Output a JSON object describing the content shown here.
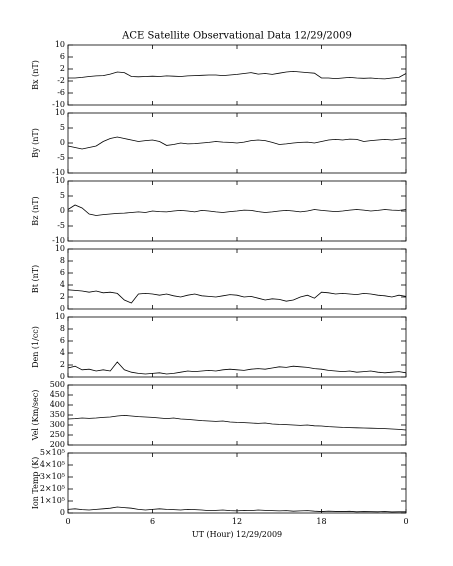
{
  "chart_data": [
    {
      "type": "line",
      "title": "ACE Satellite Observational Data   12/29/2009",
      "y_label": "Bx (nT)",
      "xlim": [
        0,
        24
      ],
      "ylim": [
        -10,
        10
      ],
      "yticks": [
        -10,
        -6,
        -2,
        2,
        6,
        10
      ],
      "x": [
        0,
        0.5,
        1,
        1.5,
        2,
        2.5,
        3,
        3.5,
        4,
        4.5,
        5,
        5.5,
        6,
        6.5,
        7,
        7.5,
        8,
        8.5,
        9,
        9.5,
        10,
        10.5,
        11,
        11.5,
        12,
        12.5,
        13,
        13.5,
        14,
        14.5,
        15,
        15.5,
        16,
        16.5,
        17,
        17.5,
        18,
        18.5,
        19,
        19.5,
        20,
        20.5,
        21,
        21.5,
        22,
        22.5,
        23,
        23.5,
        24
      ],
      "values": [
        -1,
        -1,
        -0.8,
        -0.5,
        -0.3,
        -0.2,
        0.3,
        1,
        0.8,
        -0.5,
        -0.6,
        -0.5,
        -0.4,
        -0.5,
        -0.3,
        -0.4,
        -0.5,
        -0.3,
        -0.2,
        -0.1,
        0,
        0,
        -0.2,
        0,
        0.2,
        0.5,
        0.8,
        0.3,
        0.5,
        0.2,
        0.6,
        1,
        1.2,
        1,
        0.8,
        0.6,
        -1,
        -1,
        -1.2,
        -1,
        -0.8,
        -1,
        -1.1,
        -1,
        -1.2,
        -1.3,
        -1,
        -0.8,
        0.5
      ],
      "color": "#000000"
    },
    {
      "type": "line",
      "y_label": "By (nT)",
      "xlim": [
        0,
        24
      ],
      "ylim": [
        -10,
        10
      ],
      "yticks": [
        -10,
        -5,
        0,
        5,
        10
      ],
      "x": [
        0,
        0.5,
        1,
        1.5,
        2,
        2.5,
        3,
        3.5,
        4,
        4.5,
        5,
        5.5,
        6,
        6.5,
        7,
        7.5,
        8,
        8.5,
        9,
        9.5,
        10,
        10.5,
        11,
        11.5,
        12,
        12.5,
        13,
        13.5,
        14,
        14.5,
        15,
        15.5,
        16,
        16.5,
        17,
        17.5,
        18,
        18.5,
        19,
        19.5,
        20,
        20.5,
        21,
        21.5,
        22,
        22.5,
        23,
        23.5,
        24
      ],
      "values": [
        -1,
        -1.5,
        -2,
        -1.5,
        -1,
        0.5,
        1.5,
        2,
        1.5,
        1,
        0.5,
        0.8,
        1,
        0.5,
        -0.8,
        -0.5,
        0,
        -0.3,
        -0.2,
        0,
        0.2,
        0.5,
        0.3,
        0.2,
        0,
        0.3,
        0.8,
        1,
        0.8,
        0.2,
        -0.5,
        -0.3,
        0,
        0.2,
        0.3,
        0,
        0.5,
        1,
        1.2,
        1,
        1.3,
        1.2,
        0.5,
        0.8,
        1,
        1.2,
        1,
        1.3,
        1.5
      ],
      "color": "#000000"
    },
    {
      "type": "line",
      "y_label": "Bz (nT)",
      "xlim": [
        0,
        24
      ],
      "ylim": [
        -10,
        10
      ],
      "yticks": [
        -10,
        -5,
        0,
        5,
        10
      ],
      "x": [
        0,
        0.5,
        1,
        1.5,
        2,
        2.5,
        3,
        3.5,
        4,
        4.5,
        5,
        5.5,
        6,
        6.5,
        7,
        7.5,
        8,
        8.5,
        9,
        9.5,
        10,
        10.5,
        11,
        11.5,
        12,
        12.5,
        13,
        13.5,
        14,
        14.5,
        15,
        15.5,
        16,
        16.5,
        17,
        17.5,
        18,
        18.5,
        19,
        19.5,
        20,
        20.5,
        21,
        21.5,
        22,
        22.5,
        23,
        23.5,
        24
      ],
      "values": [
        0.5,
        2,
        1,
        -1,
        -1.5,
        -1.2,
        -1,
        -0.8,
        -0.7,
        -0.5,
        -0.3,
        -0.5,
        0,
        -0.2,
        -0.3,
        0,
        0.2,
        0,
        -0.3,
        0.2,
        0,
        -0.3,
        -0.5,
        -0.2,
        0,
        0.3,
        0.2,
        -0.2,
        -0.5,
        -0.3,
        0,
        0.2,
        0,
        -0.3,
        0,
        0.5,
        0.2,
        0,
        -0.2,
        0,
        0.3,
        0.5,
        0.3,
        0,
        0.2,
        0.5,
        0.3,
        0.2,
        0.5
      ],
      "color": "#000000"
    },
    {
      "type": "line",
      "y_label": "Bt (nT)",
      "xlim": [
        0,
        24
      ],
      "ylim": [
        0,
        10
      ],
      "yticks": [
        0,
        2,
        4,
        6,
        8,
        10
      ],
      "x": [
        0,
        0.5,
        1,
        1.5,
        2,
        2.5,
        3,
        3.5,
        4,
        4.5,
        5,
        5.5,
        6,
        6.5,
        7,
        7.5,
        8,
        8.5,
        9,
        9.5,
        10,
        10.5,
        11,
        11.5,
        12,
        12.5,
        13,
        13.5,
        14,
        14.5,
        15,
        15.5,
        16,
        16.5,
        17,
        17.5,
        18,
        18.5,
        19,
        19.5,
        20,
        20.5,
        21,
        21.5,
        22,
        22.5,
        23,
        23.5,
        24
      ],
      "values": [
        3.2,
        3.1,
        3,
        2.8,
        3,
        2.7,
        2.8,
        2.6,
        1.5,
        1,
        2.5,
        2.6,
        2.5,
        2.3,
        2.5,
        2.2,
        2,
        2.3,
        2.5,
        2.2,
        2.1,
        2,
        2.2,
        2.4,
        2.3,
        2,
        2.1,
        1.8,
        1.5,
        1.7,
        1.6,
        1.3,
        1.5,
        2,
        2.3,
        1.8,
        2.8,
        2.7,
        2.5,
        2.6,
        2.5,
        2.4,
        2.6,
        2.5,
        2.3,
        2.2,
        2,
        2.3,
        2.1
      ],
      "color": "#000000"
    },
    {
      "type": "line",
      "y_label": "Den (1/cc)",
      "xlim": [
        0,
        24
      ],
      "ylim": [
        0,
        10
      ],
      "yticks": [
        0,
        2,
        4,
        6,
        8,
        10
      ],
      "x": [
        0,
        0.5,
        1,
        1.5,
        2,
        2.5,
        3,
        3.5,
        4,
        4.5,
        5,
        5.5,
        6,
        6.5,
        7,
        7.5,
        8,
        8.5,
        9,
        9.5,
        10,
        10.5,
        11,
        11.5,
        12,
        12.5,
        13,
        13.5,
        14,
        14.5,
        15,
        15.5,
        16,
        16.5,
        17,
        17.5,
        18,
        18.5,
        19,
        19.5,
        20,
        20.5,
        21,
        21.5,
        22,
        22.5,
        23,
        23.5,
        24
      ],
      "values": [
        1.5,
        1.8,
        1.2,
        1.3,
        1,
        1.2,
        1,
        2.5,
        1.2,
        0.8,
        0.6,
        0.5,
        0.6,
        0.7,
        0.5,
        0.6,
        0.8,
        1,
        0.9,
        1,
        1.1,
        1,
        1.2,
        1.3,
        1.2,
        1.1,
        1.3,
        1.4,
        1.3,
        1.5,
        1.7,
        1.6,
        1.8,
        1.7,
        1.6,
        1.4,
        1.3,
        1.1,
        1,
        0.9,
        1,
        0.8,
        0.9,
        1,
        0.8,
        0.7,
        0.8,
        0.9,
        0.7
      ],
      "color": "#000000"
    },
    {
      "type": "line",
      "y_label": "Vel (Km/sec)",
      "xlim": [
        0,
        24
      ],
      "ylim": [
        200,
        500
      ],
      "yticks": [
        200,
        250,
        300,
        350,
        400,
        450,
        500
      ],
      "x": [
        0,
        0.5,
        1,
        1.5,
        2,
        2.5,
        3,
        3.5,
        4,
        4.5,
        5,
        5.5,
        6,
        6.5,
        7,
        7.5,
        8,
        8.5,
        9,
        9.5,
        10,
        10.5,
        11,
        11.5,
        12,
        12.5,
        13,
        13.5,
        14,
        14.5,
        15,
        15.5,
        16,
        16.5,
        17,
        17.5,
        18,
        18.5,
        19,
        19.5,
        20,
        20.5,
        21,
        21.5,
        22,
        22.5,
        23,
        23.5,
        24
      ],
      "values": [
        330,
        332,
        335,
        333,
        335,
        338,
        340,
        345,
        348,
        345,
        342,
        340,
        338,
        335,
        332,
        335,
        330,
        328,
        325,
        322,
        320,
        318,
        320,
        315,
        313,
        312,
        310,
        308,
        310,
        305,
        303,
        302,
        300,
        298,
        300,
        296,
        295,
        292,
        290,
        288,
        287,
        286,
        285,
        284,
        283,
        282,
        280,
        278,
        275
      ],
      "color": "#000000"
    },
    {
      "type": "line",
      "y_label": "Ion Temp (K)",
      "x_label": "UT (Hour)  12/29/2009",
      "xlim": [
        0,
        24
      ],
      "xticks": [
        0,
        6,
        12,
        18,
        {
          "value": 24,
          "label": "0"
        }
      ],
      "ylim": [
        0,
        500000
      ],
      "yticks": [
        0,
        {
          "value": 100000,
          "label": "1×10⁵"
        },
        {
          "value": 200000,
          "label": "2×10⁵"
        },
        {
          "value": 300000,
          "label": "3×10⁵"
        },
        {
          "value": 400000,
          "label": "4×10⁵"
        },
        {
          "value": 500000,
          "label": "5×10⁵"
        }
      ],
      "x": [
        0,
        0.5,
        1,
        1.5,
        2,
        2.5,
        3,
        3.5,
        4,
        4.5,
        5,
        5.5,
        6,
        6.5,
        7,
        7.5,
        8,
        8.5,
        9,
        9.5,
        10,
        10.5,
        11,
        11.5,
        12,
        12.5,
        13,
        13.5,
        14,
        14.5,
        15,
        15.5,
        16,
        16.5,
        17,
        17.5,
        18,
        18.5,
        19,
        19.5,
        20,
        20.5,
        21,
        21.5,
        22,
        22.5,
        23,
        23.5,
        24
      ],
      "values": [
        30000,
        35000,
        28000,
        25000,
        30000,
        35000,
        40000,
        50000,
        45000,
        40000,
        30000,
        25000,
        30000,
        35000,
        30000,
        28000,
        25000,
        30000,
        28000,
        25000,
        20000,
        22000,
        25000,
        20000,
        18000,
        22000,
        20000,
        25000,
        22000,
        20000,
        18000,
        20000,
        15000,
        18000,
        20000,
        15000,
        12000,
        15000,
        13000,
        12000,
        14000,
        10000,
        12000,
        11000,
        10000,
        12000,
        9000,
        10000,
        10000
      ],
      "color": "#000000"
    }
  ]
}
